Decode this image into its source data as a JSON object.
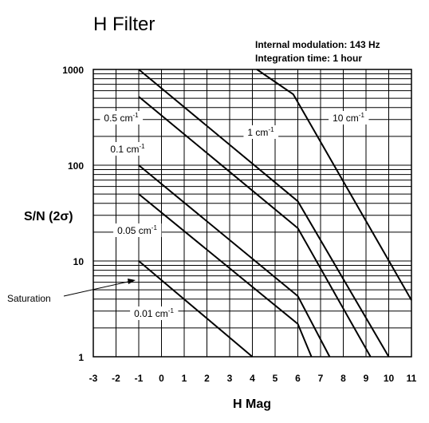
{
  "chart_data": {
    "type": "line",
    "title": "H Filter",
    "annotations": [
      "Internal modulation: 143 Hz",
      "Integration time: 1 hour"
    ],
    "xlabel": "H Mag",
    "ylabel": "S/N (2σ)",
    "xlim": [
      -3,
      11
    ],
    "ylim": [
      1,
      1000
    ],
    "yscale": "log",
    "grid": true,
    "x_ticks": [
      "-3",
      "-2",
      "-1",
      "0",
      "1",
      "2",
      "3",
      "4",
      "5",
      "6",
      "7",
      "8",
      "9",
      "10",
      "11"
    ],
    "y_ticks": [
      {
        "value": 1,
        "label": "1"
      },
      {
        "value": 10,
        "label": "10"
      },
      {
        "value": 100,
        "label": "100"
      },
      {
        "value": 1000,
        "label": "1000"
      }
    ],
    "series": [
      {
        "name": "10 cm",
        "unit_suffix": "-1",
        "x": [
          4.2,
          5.8,
          11
        ],
        "y": [
          1000,
          550,
          3.9
        ]
      },
      {
        "name": "1 cm",
        "unit_suffix": "-1",
        "x": [
          -1,
          6,
          10
        ],
        "y": [
          1000,
          42,
          1
        ]
      },
      {
        "name": "0.5 cm",
        "unit_suffix": "-1",
        "x": [
          -1,
          6,
          9.2
        ],
        "y": [
          520,
          22,
          1
        ]
      },
      {
        "name": "0.1 cm",
        "unit_suffix": "-1",
        "x": [
          -1,
          6,
          7.4
        ],
        "y": [
          100,
          4.3,
          1
        ]
      },
      {
        "name": "0.05 cm",
        "unit_suffix": "-1",
        "x": [
          -1,
          6,
          6.6
        ],
        "y": [
          50,
          2.2,
          1
        ]
      },
      {
        "name": "0.01 cm",
        "unit_suffix": "-1",
        "x": [
          -1,
          4
        ],
        "y": [
          10,
          1
        ]
      }
    ],
    "callout": {
      "label": "Saturation",
      "x": -1,
      "y": 7
    }
  }
}
